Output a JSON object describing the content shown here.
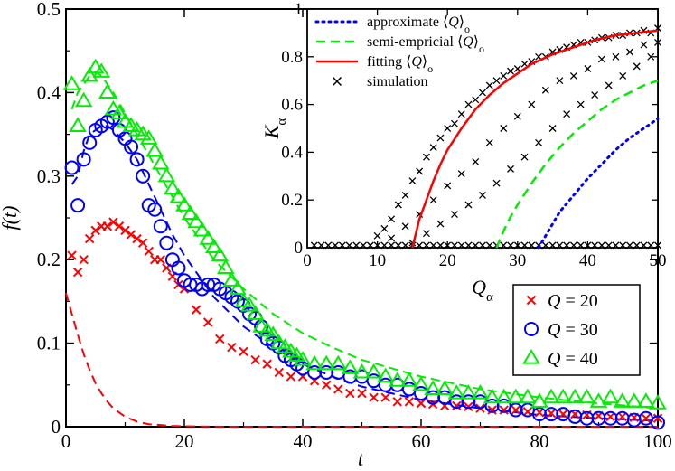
{
  "chart_data": [
    {
      "type": "scatter",
      "title": "",
      "xlabel": "t",
      "ylabel": "f(t)",
      "xlim": [
        0,
        100
      ],
      "ylim": [
        0,
        0.5
      ],
      "x_ticks": [
        "0",
        "20",
        "40",
        "60",
        "80",
        "100"
      ],
      "y_ticks": [
        "0",
        "0.1",
        "0.2",
        "0.3",
        "0.4",
        "0.5"
      ],
      "legend_position": "bottom-right",
      "series": [
        {
          "name": "Q = 20",
          "legend_var": "Q",
          "legend_value": "= 20",
          "marker": "x",
          "color": "#ff0000",
          "x": [
            1,
            2,
            3,
            4,
            5,
            6,
            7,
            8,
            9,
            10,
            11,
            12,
            13,
            14,
            15,
            16,
            17,
            18,
            19,
            20,
            22,
            24,
            26,
            28,
            30,
            32,
            34,
            36,
            38,
            40,
            42,
            44,
            46,
            48,
            50,
            52,
            54,
            56,
            58,
            60,
            62,
            64,
            66,
            68,
            70,
            72,
            74,
            76,
            78,
            80,
            82,
            84,
            86,
            88,
            90,
            92,
            94,
            96,
            98,
            100
          ],
          "y": [
            0.205,
            0.185,
            0.2,
            0.225,
            0.235,
            0.24,
            0.24,
            0.245,
            0.24,
            0.235,
            0.23,
            0.225,
            0.22,
            0.21,
            0.2,
            0.2,
            0.19,
            0.18,
            0.17,
            0.165,
            0.14,
            0.125,
            0.105,
            0.095,
            0.09,
            0.08,
            0.075,
            0.065,
            0.06,
            0.06,
            0.055,
            0.05,
            0.045,
            0.04,
            0.04,
            0.035,
            0.035,
            0.03,
            0.03,
            0.028,
            0.027,
            0.025,
            0.025,
            0.024,
            0.022,
            0.02,
            0.02,
            0.02,
            0.018,
            0.017,
            0.016,
            0.015,
            0.015,
            0.014,
            0.013,
            0.012,
            0.012,
            0.011,
            0.01,
            0.01
          ]
        },
        {
          "name": "Q = 30",
          "legend_var": "Q",
          "legend_value": "= 30",
          "marker": "circle",
          "color": "#0000ff",
          "x": [
            1,
            2,
            3,
            4,
            5,
            6,
            7,
            8,
            9,
            10,
            11,
            12,
            13,
            14,
            15,
            16,
            17,
            18,
            19,
            20,
            21,
            22,
            23,
            24,
            25,
            26,
            27,
            28,
            29,
            30,
            31,
            32,
            33,
            34,
            35,
            36,
            37,
            38,
            39,
            40,
            42,
            44,
            46,
            48,
            50,
            52,
            54,
            56,
            58,
            60,
            62,
            64,
            66,
            68,
            70,
            72,
            74,
            76,
            78,
            80,
            82,
            84,
            86,
            88,
            90,
            92,
            94,
            96,
            98,
            100
          ],
          "y": [
            0.31,
            0.265,
            0.32,
            0.34,
            0.355,
            0.36,
            0.365,
            0.37,
            0.355,
            0.345,
            0.335,
            0.32,
            0.3,
            0.265,
            0.26,
            0.24,
            0.22,
            0.2,
            0.19,
            0.175,
            0.17,
            0.17,
            0.165,
            0.17,
            0.17,
            0.165,
            0.16,
            0.155,
            0.15,
            0.145,
            0.135,
            0.13,
            0.12,
            0.105,
            0.1,
            0.095,
            0.085,
            0.08,
            0.075,
            0.07,
            0.065,
            0.065,
            0.065,
            0.06,
            0.06,
            0.055,
            0.05,
            0.05,
            0.045,
            0.04,
            0.035,
            0.035,
            0.03,
            0.03,
            0.03,
            0.025,
            0.025,
            0.02,
            0.02,
            0.015,
            0.015,
            0.015,
            0.012,
            0.01,
            0.01,
            0.01,
            0.01,
            0.008,
            0.01,
            0.005
          ]
        },
        {
          "name": "Q = 40",
          "legend_var": "Q",
          "legend_value": "= 40",
          "marker": "triangle",
          "color": "#00ee00",
          "x": [
            1,
            2,
            3,
            4,
            5,
            6,
            7,
            8,
            9,
            10,
            11,
            12,
            13,
            14,
            15,
            16,
            17,
            18,
            19,
            20,
            21,
            22,
            23,
            24,
            25,
            26,
            27,
            28,
            29,
            30,
            31,
            32,
            33,
            34,
            35,
            36,
            37,
            38,
            39,
            40,
            42,
            44,
            46,
            48,
            50,
            52,
            54,
            56,
            58,
            60,
            62,
            64,
            66,
            68,
            70,
            72,
            74,
            76,
            78,
            80,
            82,
            84,
            86,
            88,
            90,
            92,
            94,
            96,
            98,
            100
          ],
          "y": [
            0.41,
            0.36,
            0.39,
            0.42,
            0.43,
            0.425,
            0.4,
            0.38,
            0.375,
            0.365,
            0.36,
            0.355,
            0.35,
            0.345,
            0.33,
            0.315,
            0.3,
            0.285,
            0.275,
            0.265,
            0.255,
            0.245,
            0.235,
            0.225,
            0.215,
            0.205,
            0.19,
            0.175,
            0.165,
            0.15,
            0.145,
            0.135,
            0.12,
            0.115,
            0.11,
            0.1,
            0.095,
            0.09,
            0.085,
            0.08,
            0.075,
            0.075,
            0.075,
            0.07,
            0.065,
            0.065,
            0.06,
            0.055,
            0.055,
            0.05,
            0.045,
            0.045,
            0.04,
            0.04,
            0.04,
            0.035,
            0.035,
            0.035,
            0.035,
            0.03,
            0.035,
            0.035,
            0.035,
            0.035,
            0.03,
            0.035,
            0.03,
            0.03,
            0.03,
            0.028
          ]
        }
      ],
      "fit_curves": [
        {
          "color": "#ff0000",
          "dash": true,
          "x": [
            0,
            1,
            2,
            3,
            4,
            5,
            6,
            7,
            8,
            10,
            12,
            14,
            16,
            18,
            20,
            25,
            30,
            40,
            60,
            100
          ],
          "y": [
            0.16,
            0.135,
            0.11,
            0.087,
            0.068,
            0.052,
            0.04,
            0.03,
            0.022,
            0.012,
            0.006,
            0.003,
            0.002,
            0.001,
            0.0005,
            0.0001,
            0,
            0,
            0,
            0
          ]
        },
        {
          "color": "#0000ff",
          "dash": true,
          "x": [
            1,
            2,
            3,
            4,
            5,
            6,
            7,
            8,
            10,
            12,
            14,
            16,
            18,
            20,
            25,
            30,
            35,
            40,
            45,
            50,
            60,
            70,
            80,
            90,
            100
          ],
          "y": [
            0.29,
            0.3,
            0.33,
            0.35,
            0.355,
            0.36,
            0.36,
            0.355,
            0.34,
            0.32,
            0.29,
            0.26,
            0.23,
            0.205,
            0.155,
            0.12,
            0.095,
            0.075,
            0.06,
            0.048,
            0.032,
            0.022,
            0.014,
            0.01,
            0.007
          ]
        },
        {
          "color": "#00ee00",
          "dash": true,
          "x": [
            1,
            2,
            3,
            4,
            5,
            6,
            7,
            8,
            10,
            12,
            14,
            16,
            18,
            20,
            25,
            30,
            35,
            40,
            45,
            50,
            60,
            70,
            80,
            90,
            100
          ],
          "y": [
            0.38,
            0.4,
            0.41,
            0.42,
            0.425,
            0.42,
            0.41,
            0.4,
            0.375,
            0.35,
            0.325,
            0.3,
            0.275,
            0.25,
            0.2,
            0.165,
            0.135,
            0.112,
            0.095,
            0.08,
            0.06,
            0.045,
            0.035,
            0.028,
            0.022
          ]
        }
      ]
    },
    {
      "type": "scatter",
      "title": "",
      "xlabel": "Q_α",
      "ylabel": "K_α",
      "xlim": [
        0,
        50
      ],
      "ylim": [
        0,
        1
      ],
      "x_ticks": [
        "0",
        "10",
        "20",
        "30",
        "40",
        "50"
      ],
      "y_ticks": [
        "0",
        "0.2",
        "0.4",
        "0.6",
        "0.8",
        "1"
      ],
      "legend_position": "top-left",
      "legend": [
        {
          "prefix": "approximate ",
          "var": "Q",
          "sub": "o",
          "color": "#0000ff",
          "style": "dotted"
        },
        {
          "prefix": "semi-empricial ",
          "var": "Q",
          "sub": "o",
          "color": "#00ee00",
          "style": "dashed"
        },
        {
          "prefix": "fitting ",
          "var": "Q",
          "sub": "o",
          "color": "#ff0000",
          "style": "solid"
        },
        {
          "prefix": "simulation",
          "var": "",
          "sub": "",
          "color": "#000000",
          "style": "x"
        }
      ],
      "curves": [
        {
          "name": "approximate",
          "color": "#0000ff",
          "style": "dotted",
          "x": [
            33,
            34,
            35,
            36,
            38,
            40,
            42,
            44,
            46,
            48,
            50
          ],
          "y": [
            0,
            0.05,
            0.1,
            0.15,
            0.22,
            0.29,
            0.35,
            0.41,
            0.46,
            0.5,
            0.54
          ]
        },
        {
          "name": "semi-empricial",
          "color": "#00ee00",
          "style": "dashed",
          "x": [
            27,
            28,
            29,
            30,
            32,
            34,
            36,
            38,
            40,
            42,
            44,
            46,
            48,
            50
          ],
          "y": [
            0,
            0.07,
            0.13,
            0.18,
            0.27,
            0.35,
            0.42,
            0.48,
            0.53,
            0.58,
            0.62,
            0.65,
            0.68,
            0.7
          ]
        },
        {
          "name": "fitting",
          "color": "#ff0000",
          "style": "solid",
          "x": [
            15,
            16,
            17,
            18,
            19,
            20,
            22,
            24,
            26,
            28,
            30,
            32,
            35,
            38,
            41,
            44,
            47,
            50
          ],
          "y": [
            0,
            0.12,
            0.2,
            0.28,
            0.35,
            0.41,
            0.5,
            0.58,
            0.64,
            0.69,
            0.73,
            0.77,
            0.81,
            0.84,
            0.87,
            0.89,
            0.9,
            0.91
          ]
        }
      ],
      "simulation_points": {
        "x": [
          1,
          2,
          3,
          4,
          5,
          6,
          7,
          8,
          9,
          10,
          11,
          12,
          13,
          14,
          15,
          16,
          17,
          18,
          19,
          20,
          21,
          22,
          23,
          24,
          25,
          26,
          27,
          28,
          29,
          30,
          31,
          32,
          33,
          34,
          35,
          36,
          37,
          38,
          39,
          40,
          41,
          42,
          43,
          44,
          45,
          46,
          47,
          48,
          49,
          50,
          10,
          11,
          12,
          13,
          14,
          15,
          16,
          17,
          18,
          19,
          20,
          21,
          22,
          23,
          24,
          25,
          26,
          27,
          28,
          29,
          30,
          31,
          32,
          33,
          34,
          35,
          36,
          37,
          38,
          39,
          40,
          41,
          42,
          43,
          44,
          45,
          46,
          47,
          48,
          49,
          50,
          12,
          14,
          16,
          18,
          20,
          22,
          24,
          26,
          28,
          30,
          32,
          34,
          36,
          38,
          40,
          42,
          44,
          46,
          48,
          50,
          15,
          17,
          19,
          21,
          23,
          25,
          27,
          29,
          31,
          33,
          35,
          37,
          39,
          41,
          43,
          45,
          47,
          49
        ],
        "y": [
          0.01,
          0.01,
          0.01,
          0.01,
          0.01,
          0.01,
          0.01,
          0.01,
          0.01,
          0.01,
          0.01,
          0.01,
          0.01,
          0.01,
          0.01,
          0.01,
          0.01,
          0.01,
          0.01,
          0.01,
          0.01,
          0.01,
          0.01,
          0.01,
          0.01,
          0.01,
          0.01,
          0.01,
          0.01,
          0.01,
          0.01,
          0.01,
          0.01,
          0.01,
          0.01,
          0.01,
          0.01,
          0.01,
          0.01,
          0.01,
          0.01,
          0.01,
          0.01,
          0.01,
          0.01,
          0.01,
          0.01,
          0.01,
          0.01,
          0.01,
          0.05,
          0.08,
          0.12,
          0.18,
          0.22,
          0.28,
          0.32,
          0.38,
          0.42,
          0.46,
          0.5,
          0.52,
          0.56,
          0.6,
          0.62,
          0.65,
          0.68,
          0.7,
          0.72,
          0.74,
          0.75,
          0.77,
          0.78,
          0.8,
          0.8,
          0.82,
          0.83,
          0.84,
          0.85,
          0.86,
          0.86,
          0.87,
          0.88,
          0.88,
          0.89,
          0.89,
          0.9,
          0.9,
          0.91,
          0.9,
          0.92,
          0.04,
          0.09,
          0.14,
          0.2,
          0.26,
          0.31,
          0.36,
          0.44,
          0.5,
          0.55,
          0.6,
          0.66,
          0.7,
          0.72,
          0.75,
          0.79,
          0.8,
          0.82,
          0.85,
          0.86,
          0.02,
          0.06,
          0.1,
          0.14,
          0.18,
          0.22,
          0.27,
          0.33,
          0.38,
          0.44,
          0.5,
          0.56,
          0.6,
          0.64,
          0.68,
          0.72,
          0.76,
          0.8
        ]
      }
    }
  ]
}
